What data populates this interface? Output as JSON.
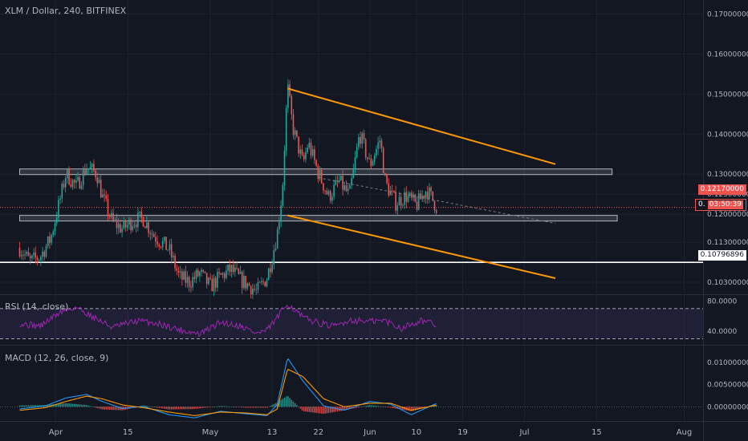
{
  "header": {
    "symbol_line": "XLM / Dollar, 240, BITFINEX"
  },
  "chart_data": [
    {
      "type": "candlestick",
      "title": "XLM / Dollar, 240, BITFINEX",
      "y_axis_ticks": [
        0.17,
        0.16,
        0.15,
        0.14,
        0.13,
        0.125,
        0.12,
        0.113,
        0.103
      ],
      "y_axis_tick_labels": [
        "0.17000000",
        "0.16000000",
        "0.15000000",
        "0.14000000",
        "0.13000000",
        "0.12500000",
        "0.12000000",
        "0.11300000",
        "0.10300000"
      ],
      "ylim": [
        0.1,
        0.1735
      ],
      "x_axis_labels": [
        "Apr",
        "15",
        "May",
        "13",
        "22",
        "Jun",
        "10",
        "19",
        "Jul",
        "15",
        "Aug"
      ],
      "close_path": [
        [
          "2019-03-25",
          0.1116
        ],
        [
          "2019-03-27",
          0.1082
        ],
        [
          "2019-03-29",
          0.1094
        ],
        [
          "2019-03-31",
          0.1139
        ],
        [
          "2019-04-02",
          0.1245
        ],
        [
          "2019-04-03",
          0.1302
        ],
        [
          "2019-04-05",
          0.1268
        ],
        [
          "2019-04-07",
          0.1318
        ],
        [
          "2019-04-09",
          0.1301
        ],
        [
          "2019-04-10",
          0.1245
        ],
        [
          "2019-04-12",
          0.1181
        ],
        [
          "2019-04-14",
          0.1163
        ],
        [
          "2019-04-16",
          0.1184
        ],
        [
          "2019-04-18",
          0.1189
        ],
        [
          "2019-04-20",
          0.1148
        ],
        [
          "2019-04-23",
          0.1112
        ],
        [
          "2019-04-25",
          0.1042
        ],
        [
          "2019-04-27",
          0.1031
        ],
        [
          "2019-04-29",
          0.1052
        ],
        [
          "2019-05-01",
          0.1019
        ],
        [
          "2019-05-03",
          0.1044
        ],
        [
          "2019-05-05",
          0.1062
        ],
        [
          "2019-05-07",
          0.1035
        ],
        [
          "2019-05-09",
          0.1018
        ],
        [
          "2019-05-10",
          0.1006
        ],
        [
          "2019-05-12",
          0.1042
        ],
        [
          "2019-05-13",
          0.1093
        ],
        [
          "2019-05-14",
          0.1152
        ],
        [
          "2019-05-15",
          0.1262
        ],
        [
          "2019-05-16",
          0.1521
        ],
        [
          "2019-05-17",
          0.1418
        ],
        [
          "2019-05-19",
          0.1325
        ],
        [
          "2019-05-20",
          0.1378
        ],
        [
          "2019-05-22",
          0.1302
        ],
        [
          "2019-05-24",
          0.1243
        ],
        [
          "2019-05-26",
          0.1282
        ],
        [
          "2019-05-28",
          0.1246
        ],
        [
          "2019-05-30",
          0.1402
        ],
        [
          "2019-06-01",
          0.1322
        ],
        [
          "2019-06-03",
          0.1388
        ],
        [
          "2019-06-04",
          0.1278
        ],
        [
          "2019-06-06",
          0.1228
        ],
        [
          "2019-06-08",
          0.1246
        ],
        [
          "2019-06-10",
          0.1222
        ],
        [
          "2019-06-12",
          0.1262
        ],
        [
          "2019-06-14",
          0.1217
        ]
      ],
      "last_price_label": "0.12170000",
      "countdown_label": "0.",
      "countdown_time": "03:50:39",
      "level_label": "0.10796896",
      "horizontal_level": 0.10796896,
      "zones": [
        {
          "from": "2019-03-25",
          "to": "2019-07-18",
          "value": 0.1306
        },
        {
          "from": "2019-03-25",
          "to": "2019-07-19",
          "value": 0.119
        }
      ],
      "trendlines": [
        {
          "from": [
            "2019-05-16",
            0.1514
          ],
          "to": [
            "2019-07-07",
            0.1325
          ]
        },
        {
          "from": [
            "2019-05-16",
            0.1197
          ],
          "to": [
            "2019-07-07",
            0.104
          ]
        },
        {
          "from": [
            "2019-05-22",
            0.1291
          ],
          "to": [
            "2019-07-07",
            0.1177
          ],
          "dashed": true
        }
      ],
      "colors": {
        "up": "#26a69a",
        "down": "#ef5350",
        "trendline": "#ff9800",
        "last_price": "#ef5350",
        "level": "#ffffff"
      }
    },
    {
      "type": "line",
      "title": "RSI (14, close)",
      "y_axis_tick_labels": [
        "80.0000",
        "40.0000"
      ],
      "bands": [
        70,
        30
      ],
      "ylim": [
        22,
        88
      ],
      "path": [
        [
          "2019-03-25",
          50
        ],
        [
          "2019-03-29",
          47
        ],
        [
          "2019-04-02",
          66
        ],
        [
          "2019-04-05",
          72
        ],
        [
          "2019-04-08",
          60
        ],
        [
          "2019-04-12",
          45
        ],
        [
          "2019-04-17",
          54
        ],
        [
          "2019-04-21",
          50
        ],
        [
          "2019-04-25",
          42
        ],
        [
          "2019-04-29",
          36
        ],
        [
          "2019-05-03",
          52
        ],
        [
          "2019-05-07",
          47
        ],
        [
          "2019-05-10",
          37
        ],
        [
          "2019-05-12",
          41
        ],
        [
          "2019-05-14",
          58
        ],
        [
          "2019-05-16",
          77
        ],
        [
          "2019-05-19",
          58
        ],
        [
          "2019-05-22",
          51
        ],
        [
          "2019-05-25",
          46
        ],
        [
          "2019-05-28",
          55
        ],
        [
          "2019-06-01",
          53
        ],
        [
          "2019-06-04",
          54
        ],
        [
          "2019-06-07",
          44
        ],
        [
          "2019-06-11",
          55
        ],
        [
          "2019-06-14",
          47
        ]
      ],
      "color": "#9c27b0"
    },
    {
      "type": "line",
      "title": "MACD (12, 26, close, 9)",
      "y_axis_tick_labels": [
        "0.01000000",
        "0.00500000",
        "0.00000000"
      ],
      "ylim": [
        -0.0032,
        0.0138
      ],
      "series": [
        {
          "name": "MACD",
          "color": "#2196f3",
          "path": [
            [
              "2019-03-25",
              -0.0005
            ],
            [
              "2019-03-30",
              0.0002
            ],
            [
              "2019-04-03",
              0.002
            ],
            [
              "2019-04-07",
              0.0028
            ],
            [
              "2019-04-10",
              0.0012
            ],
            [
              "2019-04-14",
              -0.0004
            ],
            [
              "2019-04-18",
              0.0001
            ],
            [
              "2019-04-23",
              -0.0018
            ],
            [
              "2019-04-28",
              -0.0025
            ],
            [
              "2019-05-03",
              -0.001
            ],
            [
              "2019-05-08",
              -0.0016
            ],
            [
              "2019-05-12",
              -0.002
            ],
            [
              "2019-05-14",
              0.0005
            ],
            [
              "2019-05-16",
              0.011
            ],
            [
              "2019-05-19",
              0.0058
            ],
            [
              "2019-05-23",
              0.0002
            ],
            [
              "2019-05-27",
              -0.0008
            ],
            [
              "2019-06-01",
              0.0012
            ],
            [
              "2019-06-05",
              0.0006
            ],
            [
              "2019-06-09",
              -0.0018
            ],
            [
              "2019-06-14",
              0.0008
            ]
          ]
        },
        {
          "name": "Signal",
          "color": "#ff9800",
          "path": [
            [
              "2019-03-25",
              -0.0008
            ],
            [
              "2019-03-30",
              -0.0002
            ],
            [
              "2019-04-03",
              0.0012
            ],
            [
              "2019-04-07",
              0.0024
            ],
            [
              "2019-04-10",
              0.0018
            ],
            [
              "2019-04-14",
              0.0004
            ],
            [
              "2019-04-18",
              -0.0002
            ],
            [
              "2019-04-23",
              -0.0012
            ],
            [
              "2019-04-28",
              -0.002
            ],
            [
              "2019-05-03",
              -0.0012
            ],
            [
              "2019-05-08",
              -0.0014
            ],
            [
              "2019-05-12",
              -0.0018
            ],
            [
              "2019-05-14",
              -0.0005
            ],
            [
              "2019-05-16",
              0.0085
            ],
            [
              "2019-05-19",
              0.0068
            ],
            [
              "2019-05-23",
              0.0018
            ],
            [
              "2019-05-27",
              0.0
            ],
            [
              "2019-06-01",
              0.0008
            ],
            [
              "2019-06-05",
              0.0008
            ],
            [
              "2019-06-09",
              -0.0008
            ],
            [
              "2019-06-14",
              0.0004
            ]
          ]
        }
      ]
    }
  ]
}
